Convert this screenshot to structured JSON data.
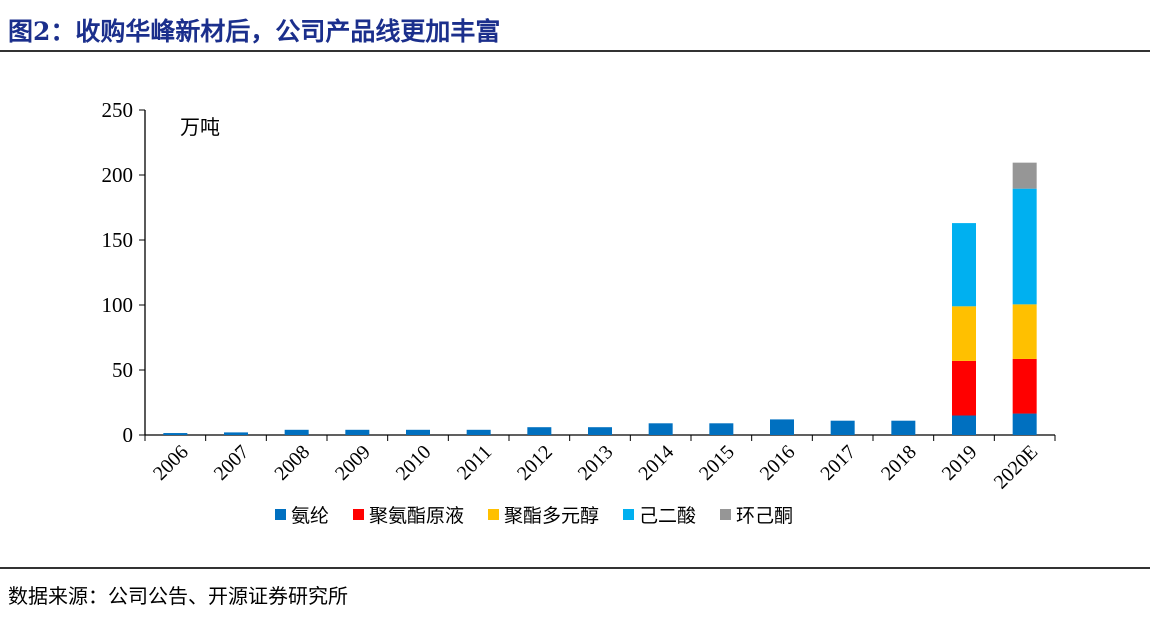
{
  "header": {
    "title": "图2：收购华峰新材后，公司产品线更加丰富"
  },
  "footer": {
    "source": "数据来源：公司公告、开源证券研究所"
  },
  "chart_data": {
    "type": "bar",
    "stacked": true,
    "title": "",
    "ylabel": "万吨",
    "xlabel": "",
    "ylim": [
      0,
      250
    ],
    "yticks": [
      0,
      50,
      100,
      150,
      200,
      250
    ],
    "categories": [
      "2006",
      "2007",
      "2008",
      "2009",
      "2010",
      "2011",
      "2012",
      "2013",
      "2014",
      "2015",
      "2016",
      "2017",
      "2018",
      "2019",
      "2020E"
    ],
    "series": [
      {
        "name": "氨纶",
        "color": "#0070c0",
        "values": [
          1.5,
          2,
          4,
          4,
          4,
          4,
          6,
          6,
          9,
          9,
          12,
          11,
          11,
          15,
          16.5
        ]
      },
      {
        "name": "聚氨酯原液",
        "color": "#ff0000",
        "values": [
          0,
          0,
          0,
          0,
          0,
          0,
          0,
          0,
          0,
          0,
          0,
          0,
          0,
          42,
          42
        ]
      },
      {
        "name": "聚酯多元醇",
        "color": "#ffc000",
        "values": [
          0,
          0,
          0,
          0,
          0,
          0,
          0,
          0,
          0,
          0,
          0,
          0,
          0,
          42,
          42
        ]
      },
      {
        "name": "己二酸",
        "color": "#00b0f0",
        "values": [
          0,
          0,
          0,
          0,
          0,
          0,
          0,
          0,
          0,
          0,
          0,
          0,
          0,
          64,
          89
        ]
      },
      {
        "name": "环己酮",
        "color": "#969696",
        "values": [
          0,
          0,
          0,
          0,
          0,
          0,
          0,
          0,
          0,
          0,
          0,
          0,
          0,
          0,
          20
        ]
      }
    ],
    "legend": "bottom",
    "grid": false
  }
}
